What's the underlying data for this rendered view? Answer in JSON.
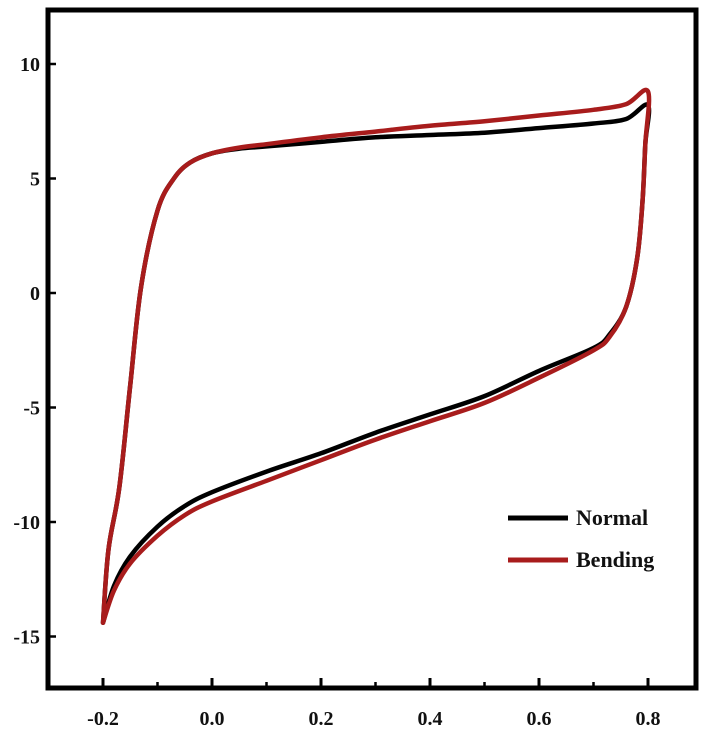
{
  "chart_data": {
    "type": "line",
    "title": "",
    "xlabel": "",
    "ylabel": "",
    "xlim": [
      -0.2,
      0.8
    ],
    "ylim": [
      -15,
      12
    ],
    "grid": false,
    "legend_position": "bottom-right",
    "x_ticks": [
      "-0.2",
      "0.0",
      "0.2",
      "0.4",
      "0.6",
      "0.8"
    ],
    "y_ticks": [
      "10",
      "5",
      "0",
      "-5",
      "-10",
      "-15"
    ],
    "series": [
      {
        "name": "Normal",
        "color": "#000000",
        "points": [
          [
            -0.2,
            -14.4
          ],
          [
            -0.19,
            -11.2
          ],
          [
            -0.17,
            -8.5
          ],
          [
            -0.15,
            -4.0
          ],
          [
            -0.13,
            0.3
          ],
          [
            -0.1,
            3.6
          ],
          [
            -0.07,
            5.0
          ],
          [
            -0.04,
            5.7
          ],
          [
            0.0,
            6.1
          ],
          [
            0.05,
            6.3
          ],
          [
            0.1,
            6.4
          ],
          [
            0.2,
            6.6
          ],
          [
            0.3,
            6.8
          ],
          [
            0.4,
            6.9
          ],
          [
            0.5,
            7.0
          ],
          [
            0.6,
            7.2
          ],
          [
            0.7,
            7.4
          ],
          [
            0.76,
            7.6
          ],
          [
            0.8,
            8.2
          ],
          [
            0.795,
            6.5
          ],
          [
            0.79,
            4.0
          ],
          [
            0.78,
            1.5
          ],
          [
            0.76,
            -0.6
          ],
          [
            0.73,
            -1.8
          ],
          [
            0.7,
            -2.4
          ],
          [
            0.6,
            -3.4
          ],
          [
            0.5,
            -4.5
          ],
          [
            0.4,
            -5.3
          ],
          [
            0.3,
            -6.1
          ],
          [
            0.2,
            -7.0
          ],
          [
            0.1,
            -7.8
          ],
          [
            0.0,
            -8.7
          ],
          [
            -0.05,
            -9.3
          ],
          [
            -0.1,
            -10.2
          ],
          [
            -0.15,
            -11.5
          ],
          [
            -0.18,
            -12.8
          ],
          [
            -0.2,
            -14.4
          ]
        ]
      },
      {
        "name": "Bending",
        "color": "#a81c1c",
        "points": [
          [
            -0.2,
            -14.4
          ],
          [
            -0.19,
            -11.2
          ],
          [
            -0.17,
            -8.5
          ],
          [
            -0.15,
            -4.0
          ],
          [
            -0.13,
            0.3
          ],
          [
            -0.1,
            3.6
          ],
          [
            -0.07,
            5.0
          ],
          [
            -0.04,
            5.7
          ],
          [
            0.0,
            6.1
          ],
          [
            0.05,
            6.35
          ],
          [
            0.1,
            6.5
          ],
          [
            0.2,
            6.8
          ],
          [
            0.3,
            7.05
          ],
          [
            0.4,
            7.3
          ],
          [
            0.5,
            7.5
          ],
          [
            0.6,
            7.75
          ],
          [
            0.7,
            8.0
          ],
          [
            0.76,
            8.25
          ],
          [
            0.8,
            8.8
          ],
          [
            0.795,
            6.5
          ],
          [
            0.79,
            4.0
          ],
          [
            0.78,
            1.5
          ],
          [
            0.76,
            -0.6
          ],
          [
            0.73,
            -1.9
          ],
          [
            0.7,
            -2.5
          ],
          [
            0.6,
            -3.7
          ],
          [
            0.5,
            -4.8
          ],
          [
            0.4,
            -5.6
          ],
          [
            0.3,
            -6.4
          ],
          [
            0.2,
            -7.3
          ],
          [
            0.1,
            -8.2
          ],
          [
            0.0,
            -9.1
          ],
          [
            -0.05,
            -9.7
          ],
          [
            -0.1,
            -10.6
          ],
          [
            -0.15,
            -11.8
          ],
          [
            -0.18,
            -13.0
          ],
          [
            -0.2,
            -14.4
          ]
        ]
      }
    ]
  }
}
